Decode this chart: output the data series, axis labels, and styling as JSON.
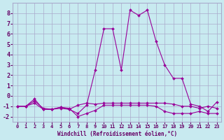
{
  "x": [
    0,
    1,
    2,
    3,
    4,
    5,
    6,
    7,
    8,
    9,
    10,
    11,
    12,
    13,
    14,
    15,
    16,
    17,
    18,
    19,
    20,
    21,
    22,
    23
  ],
  "line1": [
    -1,
    -1,
    -0.7,
    -1.3,
    -1.3,
    -1.2,
    -1.3,
    -0.9,
    -0.7,
    -0.8,
    -0.7,
    -0.7,
    -0.7,
    -0.7,
    -0.7,
    -0.7,
    -0.7,
    -0.7,
    -0.8,
    -1,
    -1,
    -1.2,
    -1,
    -1.2
  ],
  "line2": [
    -1,
    -1,
    -0.5,
    -1.2,
    -1.3,
    -1.1,
    -1.2,
    -2.0,
    -1.7,
    -1.4,
    -0.9,
    -0.9,
    -0.9,
    -0.9,
    -0.9,
    -0.9,
    -1.0,
    -1.5,
    -1.7,
    -1.7,
    -1.7,
    -1.5,
    -1.7,
    -1.7
  ],
  "line3": [
    -1,
    -1,
    -0.3,
    -1.3,
    -1.3,
    -1.1,
    -1.3,
    -1.7,
    -0.9,
    2.5,
    6.5,
    6.5,
    2.5,
    8.3,
    7.8,
    8.3,
    5.3,
    3.0,
    1.7,
    1.7,
    -0.8,
    -1.0,
    -1.5,
    -0.6
  ],
  "bg_color": "#c8eaf0",
  "line_color": "#990099",
  "grid_color": "#aaaacc",
  "xlabel": "Windchill (Refroidissement éolien,°C)",
  "xlabel_color": "#660066",
  "yticks": [
    -2,
    -1,
    0,
    1,
    2,
    3,
    4,
    5,
    6,
    7,
    8
  ],
  "xticks": [
    0,
    1,
    2,
    3,
    4,
    5,
    6,
    7,
    8,
    9,
    10,
    11,
    12,
    13,
    14,
    15,
    16,
    17,
    18,
    19,
    20,
    21,
    22,
    23
  ],
  "ylim": [
    -2.5,
    9.0
  ],
  "xlim": [
    -0.5,
    23.5
  ]
}
